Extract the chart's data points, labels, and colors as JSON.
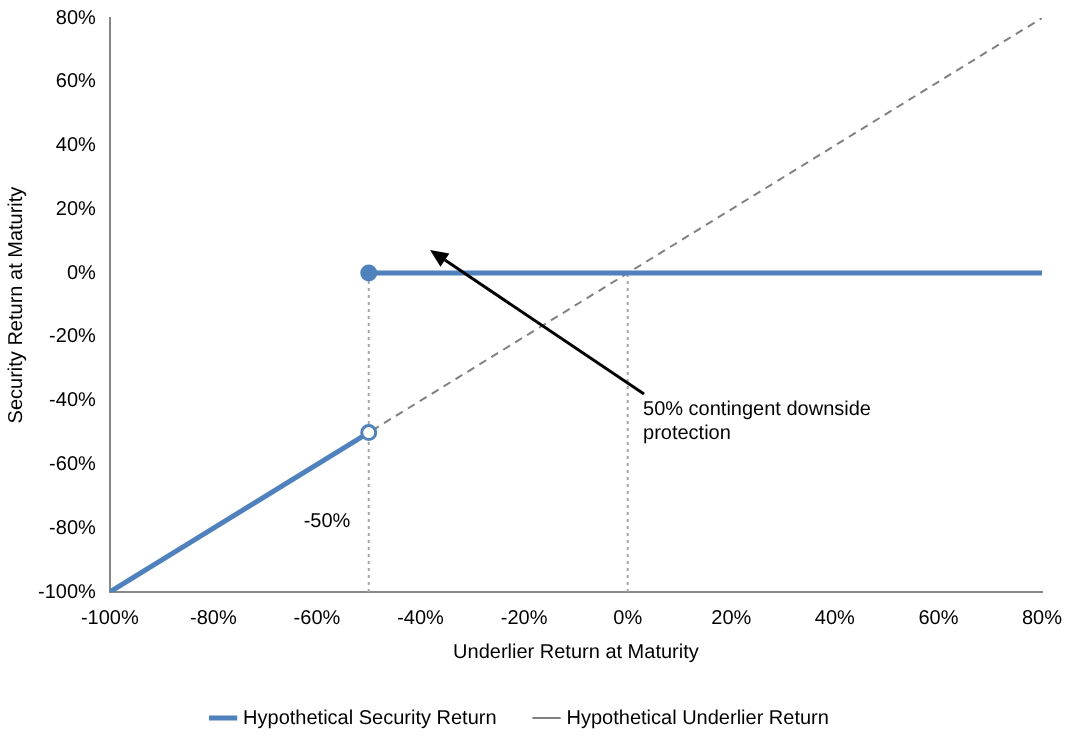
{
  "chart_data": {
    "type": "line",
    "xlabel": "Underlier Return at Maturity",
    "ylabel": "Security Return at Maturity",
    "xlim": [
      -100,
      80
    ],
    "ylim": [
      -100,
      80
    ],
    "xticks": [
      {
        "value": -100,
        "label": "-100%"
      },
      {
        "value": -80,
        "label": "-80%"
      },
      {
        "value": -60,
        "label": "-60%"
      },
      {
        "value": -40,
        "label": "-40%"
      },
      {
        "value": -20,
        "label": "-20%"
      },
      {
        "value": 0,
        "label": "0%"
      },
      {
        "value": 20,
        "label": "20%"
      },
      {
        "value": 40,
        "label": "40%"
      },
      {
        "value": 60,
        "label": "60%"
      },
      {
        "value": 80,
        "label": "80%"
      }
    ],
    "yticks": [
      {
        "value": -100,
        "label": "-100%"
      },
      {
        "value": -80,
        "label": "-80%"
      },
      {
        "value": -60,
        "label": "-60%"
      },
      {
        "value": -40,
        "label": "-40%"
      },
      {
        "value": -20,
        "label": "-20%"
      },
      {
        "value": 0,
        "label": "0%"
      },
      {
        "value": 20,
        "label": "20%"
      },
      {
        "value": 40,
        "label": "40%"
      },
      {
        "value": 60,
        "label": "60%"
      },
      {
        "value": 80,
        "label": "80%"
      }
    ],
    "grid": false,
    "legend": "bottom",
    "marker": "none",
    "series": [
      {
        "name": "Hypothetical Security Return",
        "color": "#4f81bd",
        "x": [
          -100,
          -50,
          null,
          -50,
          80
        ],
        "values": [
          -100,
          -50,
          null,
          0,
          0
        ],
        "line_style": "solid"
      },
      {
        "name": "Hypothetical Underlier Return",
        "color": "#808080",
        "x": [
          -100,
          80
        ],
        "values": [
          -100,
          80
        ],
        "line_style": "dashed"
      },
      {
        "type": "line",
        "color": "#a6a6a6",
        "x": [
          -50,
          -50
        ],
        "values": [
          -100,
          0
        ],
        "line_style": "dotted"
      },
      {
        "type": "line",
        "color": "#a6a6a6",
        "x": [
          0,
          0
        ],
        "values": [
          -100,
          0
        ],
        "line_style": "dotted"
      },
      {
        "type": "scatter",
        "color": "#4f81bd",
        "x": [
          -50,
          -50
        ],
        "values": [
          -50,
          0
        ],
        "colors": [
          "#ffffff",
          "#4f81bd"
        ],
        "marker": "circle"
      }
    ],
    "annotations": [
      "-50%",
      "50% contingent downside protection"
    ]
  }
}
